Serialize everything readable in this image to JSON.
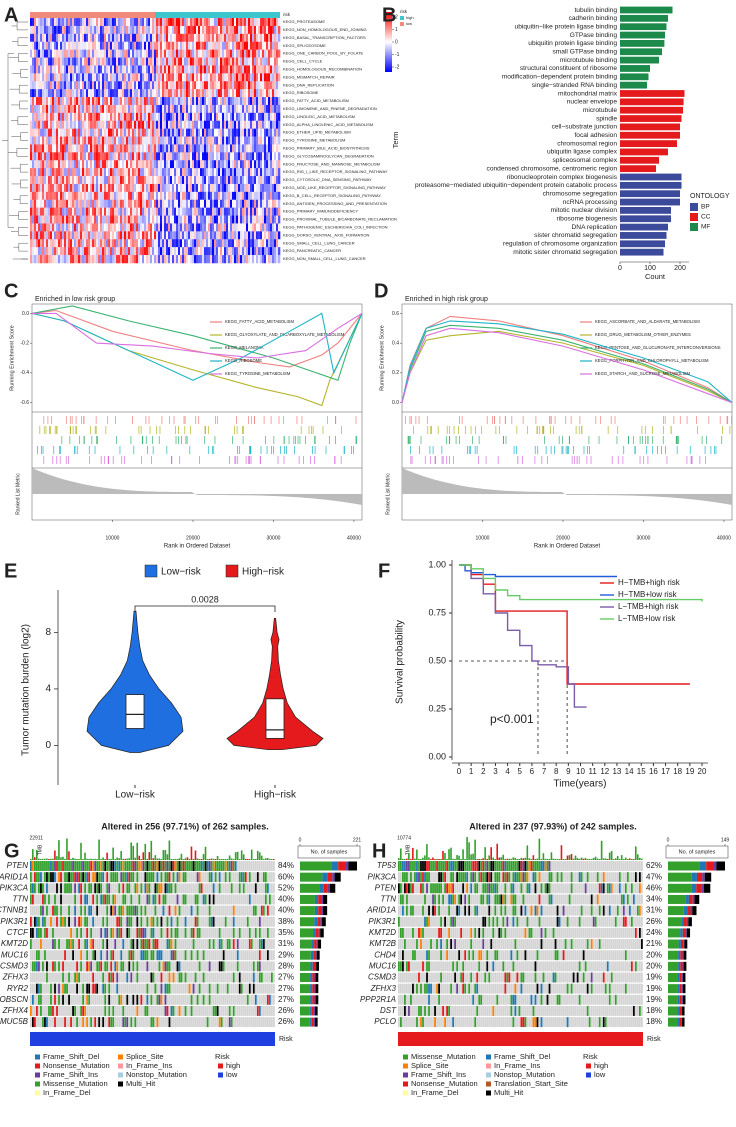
{
  "chart_data": [
    {
      "type": "heatmap",
      "panel": "A",
      "annotation_label": "risk",
      "legend_title": "risk",
      "legend_items": [
        {
          "name": "high",
          "color": "#3ec6cf"
        },
        {
          "name": "low",
          "color": "#f08a7a"
        }
      ],
      "colorbar_ticks": [
        2,
        1,
        0,
        -1,
        -2
      ],
      "rows": [
        "KEGG_PROTEASOME",
        "KEGG_NON_HOMOLOGOUS_END_JOINING",
        "KEGG_BASAL_TRANSCRIPTION_FACTORS",
        "KEGG_SPLICEOSOME",
        "KEGG_ONE_CARBON_POOL_BY_FOLATE",
        "KEGG_CELL_CYCLE",
        "KEGG_HOMOLOGOUS_RECOMBINATION",
        "KEGG_MISMATCH_REPAIR",
        "KEGG_DNA_REPLICATION",
        "KEGG_RIBOSOME",
        "KEGG_FATTY_ACID_METABOLISM",
        "KEGG_LIMONENE_AND_PINENE_DEGRADATION",
        "KEGG_LINOLEIC_ACID_METABOLISM",
        "KEGG_ALPHA_LINOLENIC_ACID_METABOLISM",
        "KEGG_ETHER_LIPID_METABOLISM",
        "KEGG_TYROSINE_METABOLISM",
        "KEGG_PRIMARY_BILE_ACID_BIOSYNTHESIS",
        "KEGG_GLYCOSAMINOGLYCAN_DEGRADATION",
        "KEGG_FRUCTOSE_AND_MANNOSE_METABOLISM",
        "KEGG_RIG_I_LIKE_RECEPTOR_SIGNALING_PATHWAY",
        "KEGG_CYTOSOLIC_DNA_SENSING_PATHWAY",
        "KEGG_NOD_LIKE_RECEPTOR_SIGNALING_PATHWAY",
        "KEGG_B_CELL_RECEPTOR_SIGNALING_PATHWAY",
        "KEGG_ANTIGEN_PROCESSING_AND_PRESENTATION",
        "KEGG_PRIMARY_IMMUNODEFICIENCY",
        "KEGG_PROXIMAL_TUBULE_BICARBONATE_RECLAMATION",
        "KEGG_PATHOGENIC_ESCHERICHIA_COLI_INFECTION",
        "KEGG_DORSO_VENTRAL_AXIS_FORMATION",
        "KEGG_SMALL_CELL_LUNG_CANCER",
        "KEGG_PANCREATIC_CANCER",
        "KEGG_NON_SMALL_CELL_LUNG_CANCER"
      ]
    },
    {
      "type": "bar",
      "panel": "B",
      "orientation": "horizontal",
      "xlabel": "Count",
      "ylabel": "Term",
      "legend_title": "ONTOLOGY",
      "xlim": [
        0,
        230
      ],
      "xticks": [
        0,
        100,
        200
      ],
      "series": [
        {
          "name": "BP",
          "color": "#3b4a9a",
          "categories": [
            "ribonucleoprotein complex biogenesis",
            "proteasome−mediated ubiquitin−dependent protein catabolic process",
            "chromosome segregation",
            "ncRNA processing",
            "mitotic nuclear division",
            "ribosome biogenesis",
            "DNA replication",
            "sister chromatid segregation",
            "regulation of chromosome organization",
            "mitotic sister chromatid segregation"
          ],
          "values": [
            205,
            205,
            200,
            200,
            170,
            170,
            160,
            155,
            150,
            145
          ]
        },
        {
          "name": "CC",
          "color": "#e41a1c",
          "categories": [
            "mitochondrial matrix",
            "nuclear envelope",
            "microtubule",
            "spindle",
            "cell−substrate junction",
            "focal adhesion",
            "chromosomal region",
            "ubiquitin ligase complex",
            "spliceosomal complex",
            "condensed chromosome, centromeric region"
          ],
          "values": [
            215,
            212,
            210,
            205,
            200,
            200,
            190,
            160,
            130,
            120
          ]
        },
        {
          "name": "MF",
          "color": "#1b8a4a",
          "categories": [
            "tubulin binding",
            "cadherin binding",
            "ubiquitin−like protein ligase binding",
            "GTPase binding",
            "ubiquitin protein ligase binding",
            "small GTPase binding",
            "microtubule binding",
            "structural constituent of ribosome",
            "modification−dependent protein binding",
            "single−stranded RNA binding"
          ],
          "values": [
            175,
            160,
            155,
            150,
            148,
            140,
            130,
            100,
            95,
            90
          ]
        }
      ]
    },
    {
      "type": "gsea",
      "panel": "C",
      "title": "Enriched in low risk group",
      "ylabel": "Running Enrichment Score",
      "y2label": "Ranked List Metric",
      "xlabel": "Rank in Ordered Dataset",
      "xlim": [
        0,
        41000
      ],
      "xticks": [
        10000,
        20000,
        30000,
        40000
      ],
      "ylim": [
        -0.65,
        0.05
      ],
      "yticks": [
        {
          "value": 0,
          "label": "0.0"
        },
        {
          "value": -0.2,
          "label": "-0.2"
        },
        {
          "value": -0.4,
          "label": "-0.4"
        },
        {
          "value": -0.6,
          "label": "-0.6"
        }
      ],
      "series": [
        {
          "name": "KEGG_FATTY_ACID_METABOLISM",
          "color": "#f08080",
          "x": [
            0,
            3000,
            10000,
            20000,
            28000,
            32000,
            36000,
            38000,
            41000
          ],
          "values": [
            0,
            0.02,
            -0.12,
            -0.25,
            -0.33,
            -0.36,
            -0.28,
            -0.2,
            0
          ]
        },
        {
          "name": "KEGG_GLYOXYLATE_AND_DICARBOXYLATE_METABOLISM",
          "color": "#b5b52a",
          "x": [
            0,
            4000,
            12000,
            20000,
            28000,
            33000,
            36000,
            37000,
            41000
          ],
          "values": [
            0,
            -0.05,
            -0.25,
            -0.38,
            -0.5,
            -0.56,
            -0.62,
            -0.45,
            0
          ]
        },
        {
          "name": "KEGG_MELANOMA",
          "color": "#3cb371",
          "x": [
            0,
            5000,
            12000,
            20000,
            30000,
            38000,
            39500,
            41000
          ],
          "values": [
            0,
            0.05,
            -0.05,
            -0.15,
            -0.3,
            -0.45,
            -0.2,
            0
          ]
        },
        {
          "name": "KEGG_RIBOSOME",
          "color": "#1fb5c9",
          "x": [
            0,
            4000,
            10000,
            16000,
            20000,
            26000,
            32000,
            36000,
            37500,
            41000
          ],
          "values": [
            0,
            -0.05,
            -0.2,
            -0.35,
            -0.45,
            -0.3,
            -0.12,
            0.0,
            -0.4,
            0
          ]
        },
        {
          "name": "KEGG_TYROSINE_METABOLISM",
          "color": "#d96fe0",
          "x": [
            0,
            3000,
            8000,
            15000,
            22000,
            28000,
            34000,
            38000,
            41000
          ],
          "values": [
            0,
            0.0,
            -0.2,
            -0.22,
            -0.27,
            -0.3,
            -0.25,
            -0.1,
            0
          ]
        }
      ]
    },
    {
      "type": "gsea",
      "panel": "D",
      "title": "Enriched in high risk group",
      "ylabel": "Running Enrichment Score",
      "y2label": "Ranked List Metric",
      "xlabel": "Rank in Ordered Dataset",
      "xlim": [
        0,
        41000
      ],
      "xticks": [
        10000,
        20000,
        30000,
        40000
      ],
      "ylim": [
        -0.05,
        0.65
      ],
      "yticks": [
        {
          "value": 0,
          "label": "0.0"
        },
        {
          "value": 0.2,
          "label": "0.2"
        },
        {
          "value": 0.4,
          "label": "0.4"
        },
        {
          "value": 0.6,
          "label": "0.6"
        }
      ],
      "series": [
        {
          "name": "KEGG_ASCORBATE_AND_ALDARATE_METABOLISM",
          "color": "#f08080",
          "x": [
            0,
            1000,
            3000,
            6000,
            12000,
            20000,
            30000,
            38000,
            41000
          ],
          "values": [
            0,
            0.25,
            0.5,
            0.58,
            0.55,
            0.45,
            0.28,
            0.1,
            0
          ]
        },
        {
          "name": "KEGG_DRUG_METABOLISM_OTHER_ENZYMES",
          "color": "#b5b52a",
          "x": [
            0,
            1000,
            3000,
            6000,
            12000,
            20000,
            30000,
            38000,
            41000
          ],
          "values": [
            0,
            0.2,
            0.42,
            0.45,
            0.48,
            0.4,
            0.25,
            0.08,
            0
          ]
        },
        {
          "name": "KEGG_PENTOSE_AND_GLUCURONATE_INTERCONVERSIONS",
          "color": "#3cb371",
          "x": [
            0,
            1000,
            3000,
            6000,
            12000,
            20000,
            30000,
            38000,
            41000
          ],
          "values": [
            0,
            0.22,
            0.48,
            0.52,
            0.5,
            0.42,
            0.26,
            0.09,
            0
          ]
        },
        {
          "name": "KEGG_PORPHYRIN_AND_CHLOROPHYLL_METABOLISM",
          "color": "#1fb5c9",
          "x": [
            0,
            1000,
            3000,
            6000,
            12000,
            20000,
            30000,
            38000,
            41000
          ],
          "values": [
            0,
            0.24,
            0.5,
            0.55,
            0.53,
            0.46,
            0.3,
            0.14,
            0
          ]
        },
        {
          "name": "KEGG_STARCH_AND_SUCROSE_METABOLISM",
          "color": "#d96fe0",
          "x": [
            0,
            1000,
            3000,
            6000,
            12000,
            20000,
            30000,
            38000,
            41000
          ],
          "values": [
            0,
            0.2,
            0.45,
            0.5,
            0.47,
            0.38,
            0.22,
            0.06,
            0
          ]
        }
      ]
    },
    {
      "type": "violin",
      "panel": "E",
      "ylabel": "Tumor mutation burden (log2)",
      "annotation": "0.0028",
      "ylim": [
        -2.8,
        11
      ],
      "yticks": [
        0,
        4,
        8
      ],
      "categories": [
        "Low−risk",
        "High−risk"
      ],
      "colors": [
        "#1f6fe0",
        "#e41a1c"
      ],
      "density": [
        {
          "y": [
            -0.5,
            0,
            1,
            2,
            3,
            4,
            5,
            6,
            7,
            8,
            9.5
          ],
          "width": [
            5,
            35,
            50,
            48,
            38,
            25,
            15,
            8,
            5,
            3,
            1
          ]
        },
        {
          "y": [
            -0.3,
            0,
            0.5,
            1,
            2,
            3,
            4,
            5,
            6,
            7,
            7.5,
            8,
            9
          ],
          "width": [
            10,
            60,
            70,
            55,
            30,
            18,
            12,
            8,
            5,
            4,
            6,
            3,
            1
          ]
        }
      ],
      "q1": [
        1.2,
        0.5
      ],
      "median": [
        2.2,
        1.1
      ],
      "q3": [
        3.6,
        3.3
      ]
    },
    {
      "type": "survival",
      "panel": "F",
      "xlabel": "Time(years)",
      "ylabel": "Survival probability",
      "annotation": "p<0.001",
      "xlim": [
        0,
        20
      ],
      "xticks": [
        0,
        1,
        2,
        3,
        4,
        5,
        6,
        7,
        8,
        9,
        10,
        11,
        12,
        13,
        14,
        15,
        16,
        17,
        18,
        19,
        20
      ],
      "ylim": [
        0,
        1
      ],
      "yticks": [
        {
          "value": 0,
          "label": "0.00"
        },
        {
          "value": 0.25,
          "label": "0.25"
        },
        {
          "value": 0.5,
          "label": "0.50"
        },
        {
          "value": 0.75,
          "label": "0.75"
        },
        {
          "value": 1,
          "label": "1.00"
        }
      ],
      "reference_y": 0.5,
      "reference_x": [
        6.5,
        8.9
      ],
      "series": [
        {
          "name": "H−TMB+high risk",
          "color": "#e41a1c",
          "x": [
            0,
            1,
            2,
            3,
            8.9,
            19
          ],
          "values": [
            1,
            0.95,
            0.9,
            0.76,
            0.38,
            0.38
          ]
        },
        {
          "name": "H−TMB+low risk",
          "color": "#1f5fd6",
          "x": [
            0,
            0.5,
            1,
            2,
            3,
            13
          ],
          "values": [
            1,
            0.97,
            0.96,
            0.95,
            0.94,
            0.94
          ]
        },
        {
          "name": "L−TMB+high risk",
          "color": "#7b5ca8",
          "x": [
            0,
            1,
            2,
            3,
            4,
            5,
            6,
            6.5,
            8,
            9,
            9.5,
            10.5
          ],
          "values": [
            1,
            0.93,
            0.85,
            0.75,
            0.66,
            0.58,
            0.5,
            0.48,
            0.47,
            0.38,
            0.26,
            0.26
          ]
        },
        {
          "name": "L−TMB+low risk",
          "color": "#66cc66",
          "x": [
            0,
            1,
            2,
            3,
            4,
            5,
            20
          ],
          "values": [
            1,
            0.98,
            0.93,
            0.87,
            0.84,
            0.82,
            0.81
          ]
        }
      ]
    },
    {
      "type": "oncoplot",
      "panel": "G",
      "title": "Altered in 256 (97.71%) of 262 samples.",
      "tmb_label": "TMB",
      "tmb_max": 22911,
      "count_label": "No. of samples",
      "count_ticks": [
        0,
        221
      ],
      "risk_label": "Risk",
      "risk_bar_color": "#1f3fe0",
      "genes": [
        "PTEN",
        "ARID1A",
        "PIK3CA",
        "TTN",
        "CTNNB1",
        "PIK3R1",
        "CTCF",
        "KMT2D",
        "MUC16",
        "CSMD3",
        "ZFHX3",
        "RYR2",
        "OBSCN",
        "ZFHX4",
        "MUC5B"
      ],
      "values": [
        84,
        60,
        52,
        40,
        40,
        38,
        35,
        31,
        29,
        28,
        27,
        27,
        27,
        26,
        26
      ],
      "value_labels": [
        "84%",
        "60%",
        "52%",
        "40%",
        "40%",
        "38%",
        "35%",
        "31%",
        "29%",
        "28%",
        "27%",
        "27%",
        "27%",
        "26%",
        "26%"
      ],
      "mutation_legend": [
        {
          "name": "Frame_Shift_Del",
          "color": "#1f78b4"
        },
        {
          "name": "Nonsense_Mutation",
          "color": "#e31a1c"
        },
        {
          "name": "Frame_Shift_Ins",
          "color": "#6a3d9a"
        },
        {
          "name": "Missense_Mutation",
          "color": "#33a02c"
        },
        {
          "name": "In_Frame_Del",
          "color": "#ffff99"
        },
        {
          "name": "Splice_Site",
          "color": "#ff7f00"
        },
        {
          "name": "In_Frame_Ins",
          "color": "#fb9a99"
        },
        {
          "name": "Nonstop_Mutation",
          "color": "#a6cee3"
        },
        {
          "name": "Multi_Hit",
          "color": "#000000"
        }
      ],
      "risk_legend": [
        {
          "name": "high",
          "color": "#e41a1c"
        },
        {
          "name": "low",
          "color": "#1f3fe0"
        }
      ]
    },
    {
      "type": "oncoplot",
      "panel": "H",
      "title": "Altered in 237 (97.93%) of 242 samples.",
      "tmb_label": "TMB",
      "tmb_max": 10774,
      "count_label": "No. of samples",
      "count_ticks": [
        0,
        149
      ],
      "risk_label": "Risk",
      "risk_bar_color": "#e41a1c",
      "genes": [
        "TP53",
        "PIK3CA",
        "PTEN",
        "TTN",
        "ARID1A",
        "PIK3R1",
        "KMT2D",
        "KMT2B",
        "CHD4",
        "MUC16",
        "CSMD3",
        "ZFHX3",
        "PPP2R1A",
        "DST",
        "PCLO"
      ],
      "values": [
        62,
        47,
        46,
        34,
        31,
        26,
        24,
        21,
        20,
        20,
        19,
        19,
        19,
        18,
        18
      ],
      "value_labels": [
        "62%",
        "47%",
        "46%",
        "34%",
        "31%",
        "26%",
        "24%",
        "21%",
        "20%",
        "20%",
        "19%",
        "19%",
        "19%",
        "18%",
        "18%"
      ],
      "mutation_legend": [
        {
          "name": "Missense_Mutation",
          "color": "#33a02c"
        },
        {
          "name": "Splice_Site",
          "color": "#ff7f00"
        },
        {
          "name": "Frame_Shift_Ins",
          "color": "#6a3d9a"
        },
        {
          "name": "Nonsense_Mutation",
          "color": "#e31a1c"
        },
        {
          "name": "In_Frame_Del",
          "color": "#ffff99"
        },
        {
          "name": "Frame_Shift_Del",
          "color": "#1f78b4"
        },
        {
          "name": "In_Frame_Ins",
          "color": "#fb9a99"
        },
        {
          "name": "Nonstop_Mutation",
          "color": "#a6cee3"
        },
        {
          "name": "Translation_Start_Site",
          "color": "#b15928"
        },
        {
          "name": "Multi_Hit",
          "color": "#000000"
        }
      ],
      "risk_legend": [
        {
          "name": "high",
          "color": "#e41a1c"
        },
        {
          "name": "low",
          "color": "#1f3fe0"
        }
      ]
    }
  ]
}
